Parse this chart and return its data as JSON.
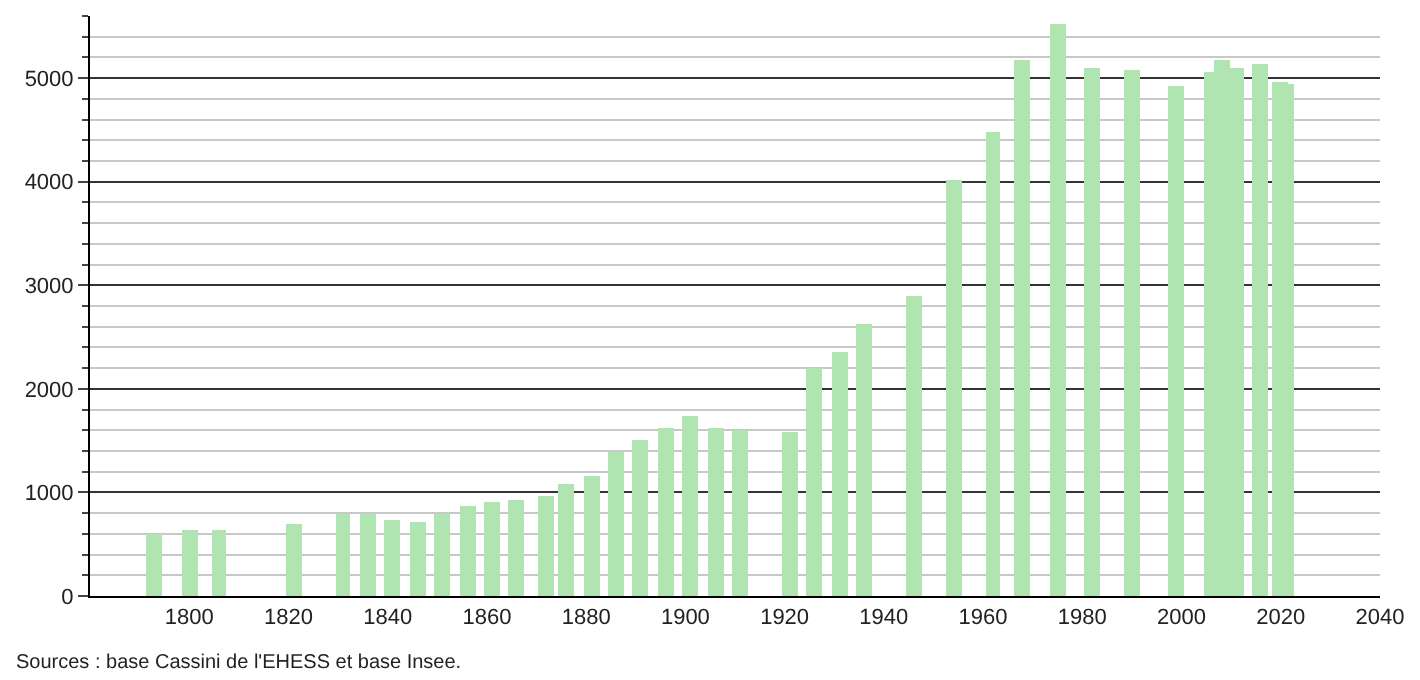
{
  "chart_data": {
    "type": "bar",
    "x": [
      1793,
      1800,
      1806,
      1821,
      1831,
      1836,
      1841,
      1846,
      1851,
      1856,
      1861,
      1866,
      1872,
      1876,
      1881,
      1886,
      1891,
      1896,
      1901,
      1906,
      1911,
      1921,
      1926,
      1931,
      1936,
      1946,
      1954,
      1962,
      1968,
      1975,
      1982,
      1990,
      1999,
      2006,
      2008,
      2011,
      2016,
      2020,
      2021
    ],
    "values": [
      600,
      630,
      630,
      690,
      790,
      790,
      740,
      720,
      800,
      870,
      900,
      920,
      960,
      1090,
      1150,
      1400,
      1500,
      1630,
      1730,
      1630,
      1610,
      1590,
      2210,
      2360,
      2620,
      2900,
      4010,
      4480,
      5180,
      5530,
      5100,
      5070,
      4930,
      5050,
      5180,
      5100,
      5130,
      4970,
      4950
    ],
    "color": "#b0e4b0",
    "xlim": [
      1780,
      2040
    ],
    "xticks": [
      1800,
      1820,
      1840,
      1860,
      1880,
      1900,
      1920,
      1940,
      1960,
      1980,
      2000,
      2020,
      2040
    ],
    "ylim": [
      0,
      5600
    ],
    "yticks": [
      0,
      1000,
      2000,
      3000,
      4000,
      5000
    ],
    "grid": "y",
    "annotations": [
      "Sources : base Cassini de l'EHESS et base Insee."
    ]
  }
}
